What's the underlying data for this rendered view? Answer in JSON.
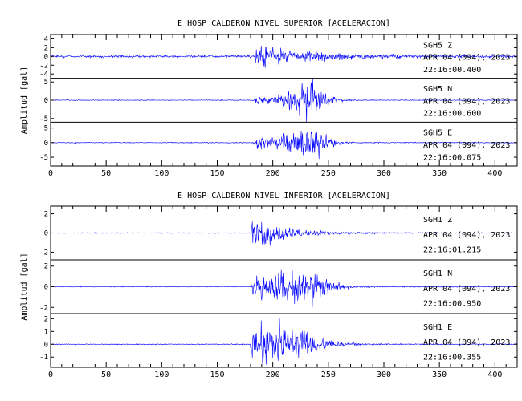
{
  "chart_data": [
    {
      "type": "line",
      "title": "E HOSP CALDERON NIVEL SUPERIOR [ACELERACION]",
      "ylabel": "Amplitud [gal]",
      "xlim": [
        0,
        420
      ],
      "xticks": [
        0,
        50,
        100,
        150,
        200,
        250,
        300,
        350,
        400
      ],
      "line_color": "#0000ff",
      "traces": [
        {
          "channel": "SGH5 Z",
          "date": "APR 04 (094), 2023",
          "time": "22:16:00.400",
          "ylim": [
            -5,
            5
          ],
          "yticks": [
            4,
            2,
            0,
            -2,
            -4
          ],
          "onset": 183,
          "noise": 0.35,
          "peak": 4.6,
          "attack": 2,
          "decay": 45,
          "burst_center": 0,
          "burst_width": 0,
          "burst_amp": 0
        },
        {
          "channel": "SGH5 N",
          "date": "APR 04 (094), 2023",
          "time": "22:16:00.600",
          "ylim": [
            -6,
            6
          ],
          "yticks": [
            5,
            0,
            -5
          ],
          "onset": 182,
          "noise": 0.15,
          "peak": 1.6,
          "attack": 4,
          "decay": 25,
          "burst_center": 230,
          "burst_width": 20,
          "burst_amp": 6.5
        },
        {
          "channel": "SGH5 E",
          "date": "APR 04 (094), 2023",
          "time": "22:16:00.075",
          "ylim": [
            -8,
            7
          ],
          "yticks": [
            5,
            0,
            -5
          ],
          "onset": 182,
          "noise": 0.2,
          "peak": 3.5,
          "attack": 3,
          "decay": 25,
          "burst_center": 230,
          "burst_width": 20,
          "burst_amp": 7
        }
      ]
    },
    {
      "type": "line",
      "title": "E HOSP CALDERON NIVEL INFERIOR [ACELERACION]",
      "ylabel": "Amplitud [gal]",
      "xlim": [
        0,
        420
      ],
      "xticks": [
        0,
        50,
        100,
        150,
        200,
        250,
        300,
        350,
        400
      ],
      "line_color": "#0000ff",
      "traces": [
        {
          "channel": "SGH1 Z",
          "date": "APR 04 (094), 2023",
          "time": "22:16:01.215",
          "ylim": [
            -2.8,
            2.8
          ],
          "yticks": [
            2,
            0,
            -2
          ],
          "onset": 180,
          "noise": 0.06,
          "peak": 2.5,
          "attack": 1,
          "decay": 30,
          "burst_center": 0,
          "burst_width": 0,
          "burst_amp": 0
        },
        {
          "channel": "SGH1 N",
          "date": "APR 04 (094), 2023",
          "time": "22:16:00.950",
          "ylim": [
            -2.6,
            2.6
          ],
          "yticks": [
            2,
            0,
            -2
          ],
          "onset": 180,
          "noise": 0.05,
          "peak": 1.5,
          "attack": 3,
          "decay": 30,
          "burst_center": 225,
          "burst_width": 25,
          "burst_amp": 2.2
        },
        {
          "channel": "SGH1 E",
          "date": "APR 04 (094), 2023",
          "time": "22:16:00.355",
          "ylim": [
            -1.8,
            2.4
          ],
          "yticks": [
            2,
            1,
            0,
            -1
          ],
          "onset": 180,
          "noise": 0.05,
          "peak": 1.6,
          "attack": 3,
          "decay": 30,
          "burst_center": 215,
          "burst_width": 30,
          "burst_amp": 1.3
        }
      ]
    }
  ]
}
